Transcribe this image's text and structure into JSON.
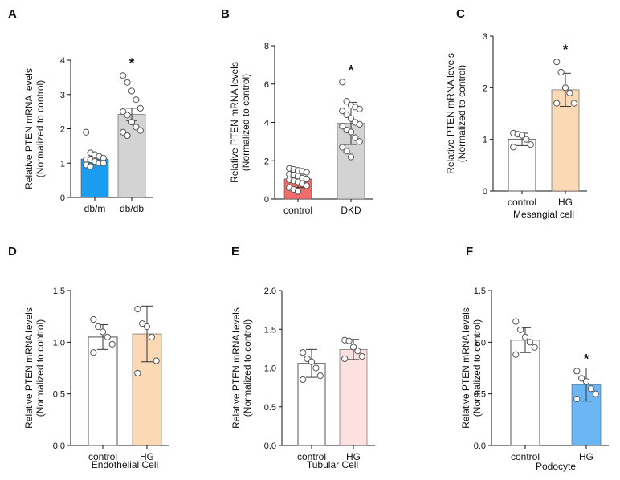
{
  "chart_data": [
    {
      "panel": "A",
      "type": "bar",
      "ylabel_lines": [
        "Relative PTEN mRNA levels",
        "(Normalized to control)"
      ],
      "xlabel": "",
      "ylim": [
        0,
        4
      ],
      "yticks": [
        0,
        1,
        2,
        3,
        4
      ],
      "categories": [
        "db/m",
        "db/db"
      ],
      "values": [
        1.12,
        2.42
      ],
      "errors": [
        0.08,
        0.18
      ],
      "colors": [
        "#1a9cf0",
        "#d3d3d3"
      ],
      "points": [
        [
          1.9,
          1.3,
          1.25,
          1.2,
          1.15,
          1.1,
          1.1,
          1.05,
          1.0,
          1.0,
          0.95,
          0.9
        ],
        [
          3.55,
          3.35,
          3.1,
          2.85,
          2.6,
          2.5,
          2.4,
          2.2,
          2.05,
          1.95,
          1.9,
          1.8
        ]
      ],
      "significance": [
        "",
        "*"
      ]
    },
    {
      "panel": "B",
      "type": "bar",
      "ylabel_lines": [
        "Relative PTEN mRNA levels",
        "(Normalized to control)"
      ],
      "xlabel": "",
      "ylim": [
        0,
        8
      ],
      "yticks": [
        0,
        2,
        4,
        6,
        8
      ],
      "categories": [
        "control",
        "DKD"
      ],
      "values": [
        1.05,
        3.95
      ],
      "errors": [
        0.45,
        1.1
      ],
      "colors": [
        "#f26b6b",
        "#d3d3d3"
      ],
      "points": [
        [
          1.6,
          1.55,
          1.5,
          1.45,
          1.4,
          1.3,
          1.25,
          1.2,
          1.1,
          1.05,
          1.0,
          0.95,
          0.9,
          0.8,
          0.7,
          0.6,
          0.5,
          0.4
        ],
        [
          6.1,
          5.1,
          4.9,
          4.8,
          4.7,
          4.6,
          4.4,
          4.2,
          4.0,
          3.9,
          3.8,
          3.6,
          3.5,
          3.2,
          3.0,
          2.7,
          2.5,
          2.2
        ]
      ],
      "significance": [
        "",
        "*"
      ]
    },
    {
      "panel": "C",
      "type": "bar",
      "ylabel_lines": [
        "Relative PTEN mRNA levels",
        "(Normalized to control)"
      ],
      "xlabel": "Mesangial cell",
      "ylim": [
        0,
        3
      ],
      "yticks": [
        0,
        1,
        2,
        3
      ],
      "categories": [
        "control",
        "HG"
      ],
      "values": [
        1.0,
        1.96
      ],
      "errors": [
        0.12,
        0.32
      ],
      "colors": [
        "#ffffff",
        "#fbd9b4"
      ],
      "points": [
        [
          1.12,
          1.1,
          1.08,
          1.0,
          0.9,
          0.85
        ],
        [
          2.5,
          2.3,
          2.0,
          1.9,
          1.7,
          1.7
        ]
      ],
      "significance": [
        "",
        "*"
      ]
    },
    {
      "panel": "D",
      "type": "bar",
      "ylabel_lines": [
        "Relative PTEN mRNA levels",
        "(Normalized to control)"
      ],
      "xlabel": "Endothelial Cell",
      "ylim": [
        0,
        1.5
      ],
      "yticks": [
        "0.0",
        "0.5",
        "1.0",
        "1.5"
      ],
      "categories": [
        "control",
        "HG"
      ],
      "values": [
        1.05,
        1.08
      ],
      "errors": [
        0.12,
        0.27
      ],
      "colors": [
        "#ffffff",
        "#fbd9b4"
      ],
      "points": [
        [
          1.22,
          1.15,
          1.1,
          1.05,
          0.98,
          0.9
        ],
        [
          1.32,
          1.18,
          1.15,
          1.05,
          0.82,
          0.7
        ]
      ],
      "significance": [
        "",
        ""
      ]
    },
    {
      "panel": "E",
      "type": "bar",
      "ylabel_lines": [
        "Relative PTEN mRNA levels",
        "(Normalized to control)"
      ],
      "xlabel": "Tubular Cell",
      "ylim": [
        0,
        2.0
      ],
      "yticks": [
        "0.0",
        "0.5",
        "1.0",
        "1.5",
        "2.0"
      ],
      "categories": [
        "control",
        "HG"
      ],
      "values": [
        1.06,
        1.24
      ],
      "errors": [
        0.18,
        0.13
      ],
      "colors": [
        "#ffffff",
        "#fde0e0"
      ],
      "points": [
        [
          1.2,
          1.12,
          1.08,
          1.0,
          0.9,
          0.85
        ],
        [
          1.36,
          1.35,
          1.27,
          1.22,
          1.15,
          1.12
        ]
      ],
      "significance": [
        "",
        ""
      ]
    },
    {
      "panel": "F",
      "type": "bar",
      "ylabel_lines": [
        "Relative PTEN mRNA levels",
        "(Normalized to control)"
      ],
      "xlabel": "Podocyte",
      "ylim": [
        0,
        1.5
      ],
      "yticks": [
        "0.0",
        "0.5",
        "1.0",
        "1.5"
      ],
      "categories": [
        "control",
        "HG"
      ],
      "values": [
        1.02,
        0.59
      ],
      "errors": [
        0.12,
        0.16
      ],
      "colors": [
        "#ffffff",
        "#6bb7f5"
      ],
      "points": [
        [
          1.2,
          1.12,
          1.05,
          1.0,
          0.95,
          0.88
        ],
        [
          0.72,
          0.65,
          0.62,
          0.55,
          0.5,
          0.45
        ]
      ],
      "significance": [
        "",
        "*"
      ]
    }
  ]
}
